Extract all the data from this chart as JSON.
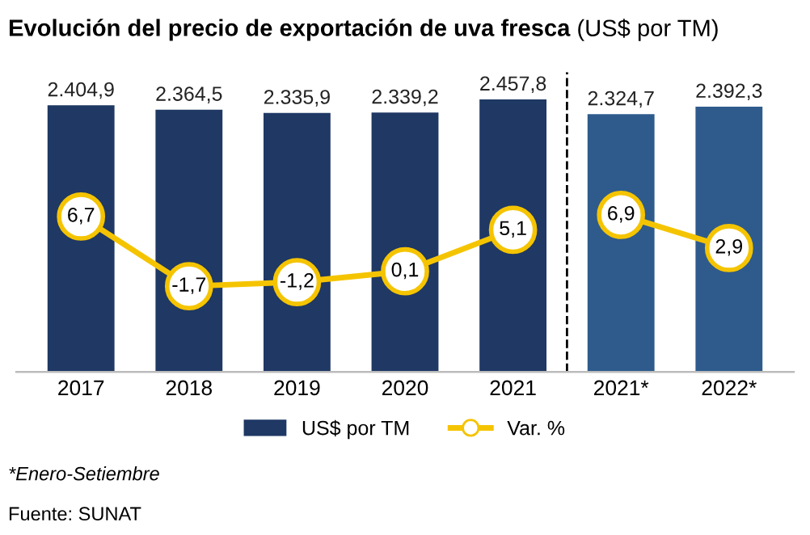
{
  "chart_data": {
    "type": "bar",
    "title": "Evolución del precio de exportación de uva fresca",
    "subtitle": "(US$ por TM)",
    "categories": [
      "2017",
      "2018",
      "2019",
      "2020",
      "2021",
      "2021*",
      "2022*"
    ],
    "series": [
      {
        "name": "US$ por TM",
        "colors": [
          "#1f3864",
          "#1f3864",
          "#1f3864",
          "#1f3864",
          "#1f3864",
          "#2e5b8c",
          "#2e5b8c"
        ],
        "values": [
          2404.9,
          2364.5,
          2335.9,
          2339.2,
          2457.8,
          2324.7,
          2392.3
        ],
        "value_labels": [
          "2.404,9",
          "2.364,5",
          "2.335,9",
          "2.339,2",
          "2.457,8",
          "2.324,7",
          "2.392,3"
        ]
      },
      {
        "name": "Var. %",
        "type": "line",
        "axis": "y2",
        "color": "#f5c400",
        "values": [
          6.7,
          -1.7,
          -1.2,
          0.1,
          5.1,
          null,
          null
        ],
        "value_labels": [
          "6,7",
          "-1,7",
          "-1,2",
          "0,1",
          "5,1",
          null,
          null
        ]
      },
      {
        "type": "line",
        "axis": "y2",
        "color": "#f5c400",
        "values": [
          null,
          null,
          null,
          null,
          null,
          6.9,
          2.9
        ],
        "value_labels": [
          null,
          null,
          null,
          null,
          null,
          "6,9",
          "2,9"
        ]
      }
    ],
    "tick_labels": "x",
    "marker": "circle",
    "grid": false,
    "legend": "bottom",
    "annotations": [
      "*Enero-Setiembre",
      "Fuente: SUNAT"
    ]
  }
}
